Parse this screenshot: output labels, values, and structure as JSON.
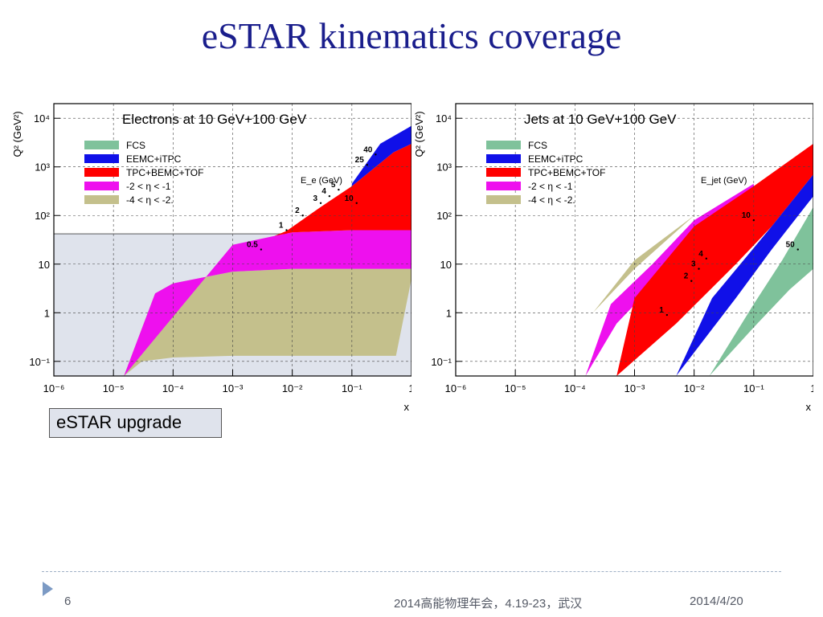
{
  "slide": {
    "title": "eSTAR kinematics coverage",
    "estar_label": "eSTAR upgrade",
    "page_number": "6",
    "footer_event": "2014高能物理年会，4.19-23，武汉",
    "footer_date": "2014/4/20"
  },
  "colors": {
    "title": "#1a1e8c",
    "FCS": "#7fc29b",
    "EEMC+iTPC": "#1010e8",
    "TPC+BEMC+TOF": "#ff0000",
    "-2 < η < -1": "#ee10ee",
    "-4 < η < -2.": "#c4c08c",
    "estar_region": "#dfe3ec"
  },
  "chart_data": [
    {
      "type": "area",
      "title": "Electrons at 10 GeV+100 GeV",
      "xlabel": "x",
      "ylabel": "Q² (GeV²)",
      "xscale": "log",
      "yscale": "log",
      "xlim": [
        1e-06,
        1
      ],
      "ylim": [
        0.05,
        20000
      ],
      "x_ticks": [
        "10⁻⁶",
        "10⁻⁵",
        "10⁻⁴",
        "10⁻³",
        "10⁻²",
        "10⁻¹",
        "1"
      ],
      "y_ticks": [
        "10⁻¹",
        "1",
        "10",
        "10²",
        "10³",
        "10⁴"
      ],
      "grid": true,
      "legend_position": "top-left",
      "legend": [
        "FCS",
        "EEMC+iTPC",
        "TPC+BEMC+TOF",
        "-2 < η < -1",
        "-4 < η < -2."
      ],
      "curve_label_title": "E_e (GeV)",
      "curve_labels": [
        "0.5",
        "1",
        "2",
        "3",
        "4",
        "5",
        "10",
        "25",
        "40"
      ],
      "curve_label_x": [
        0.003,
        0.008,
        0.015,
        0.03,
        0.042,
        0.06,
        0.12,
        0.18,
        0.25
      ],
      "curve_label_q2": [
        20,
        50,
        100,
        180,
        250,
        340,
        180,
        1100,
        1800
      ],
      "shaded_region": {
        "x": [
          1e-06,
          1
        ],
        "q2": [
          0.05,
          42
        ]
      },
      "series": [
        {
          "name": "-4 < η < -2.",
          "x": [
            1.5e-05,
            3e-05,
            0.0001,
            0.001,
            0.01,
            0.1,
            0.55,
            1,
            1,
            0.1,
            0.01,
            0.001,
            0.0001,
            5e-05,
            1.5e-05
          ],
          "q2": [
            0.05,
            0.1,
            0.12,
            0.13,
            0.13,
            0.13,
            0.13,
            5,
            8,
            8,
            8,
            7,
            4,
            2.5,
            0.05
          ]
        },
        {
          "name": "-2 < η < -1",
          "x": [
            1.5e-05,
            5e-05,
            0.0001,
            0.001,
            0.01,
            0.1,
            1,
            1,
            0.1,
            0.01,
            0.005,
            0.001,
            1.5e-05
          ],
          "q2": [
            0.05,
            2.5,
            4,
            7,
            8,
            8,
            8,
            50,
            50,
            45,
            38,
            25,
            0.05
          ]
        },
        {
          "name": "TPC+BEMC+TOF",
          "x": [
            0.005,
            0.01,
            0.1,
            1,
            1,
            0.5,
            0.1,
            0.03,
            0.008,
            0.005
          ],
          "q2": [
            38,
            45,
            50,
            50,
            3000,
            2000,
            400,
            150,
            48,
            38
          ]
        },
        {
          "name": "EEMC+iTPC",
          "x": [
            0.1,
            0.5,
            1,
            1,
            0.3,
            0.1
          ],
          "q2": [
            400,
            2000,
            3000,
            7000,
            3000,
            450
          ]
        }
      ]
    },
    {
      "type": "area",
      "title": "Jets at 10 GeV+100 GeV",
      "xlabel": "x",
      "ylabel": "Q² (GeV²)",
      "xscale": "log",
      "yscale": "log",
      "xlim": [
        1e-06,
        1
      ],
      "ylim": [
        0.05,
        20000
      ],
      "x_ticks": [
        "10⁻⁶",
        "10⁻⁵",
        "10⁻⁴",
        "10⁻³",
        "10⁻²",
        "10⁻¹",
        "1"
      ],
      "y_ticks": [
        "10⁻¹",
        "1",
        "10",
        "10²",
        "10³",
        "10⁴"
      ],
      "grid": true,
      "legend_position": "top-left",
      "legend": [
        "FCS",
        "EEMC+iTPC",
        "TPC+BEMC+TOF",
        "-2 < η < -1",
        "-4 < η < -2."
      ],
      "curve_label_title": "E_jet (GeV)",
      "curve_labels": [
        "1",
        "2",
        "3",
        "4",
        "10",
        "50"
      ],
      "curve_label_x": [
        0.0035,
        0.009,
        0.012,
        0.016,
        0.1,
        0.55
      ],
      "curve_label_q2": [
        0.9,
        4.5,
        8,
        13,
        80,
        20
      ],
      "series": [
        {
          "name": "-4 < η < -2.",
          "x": [
            5e-05,
            0.0002,
            0.001,
            0.01,
            0.01,
            0.001,
            0.0002,
            5e-05
          ],
          "q2": [
            0.05,
            1,
            8,
            100,
            100,
            12,
            1,
            0.05
          ]
        },
        {
          "name": "-2 < η < -1",
          "x": [
            0.00015,
            0.0005,
            0.003,
            0.02,
            0.1,
            0.1,
            0.01,
            0.002,
            0.0004,
            0.00015
          ],
          "q2": [
            0.05,
            0.6,
            6,
            60,
            400,
            450,
            80,
            10,
            1.5,
            0.05
          ]
        },
        {
          "name": "TPC+BEMC+TOF",
          "x": [
            0.0005,
            0.005,
            0.05,
            0.2,
            1,
            1,
            0.1,
            0.01,
            0.001,
            0.0005
          ],
          "q2": [
            0.05,
            0.6,
            10,
            60,
            700,
            3000,
            400,
            60,
            2,
            0.05
          ]
        },
        {
          "name": "EEMC+iTPC",
          "x": [
            0.005,
            0.05,
            0.2,
            1,
            1,
            0.2,
            0.02,
            0.005
          ],
          "q2": [
            0.05,
            2,
            20,
            250,
            700,
            60,
            2,
            0.05
          ]
        },
        {
          "name": "FCS",
          "x": [
            0.018,
            0.1,
            0.4,
            1,
            1,
            0.3,
            0.1,
            0.018
          ],
          "q2": [
            0.05,
            0.5,
            3,
            8,
            150,
            12,
            1.5,
            0.05
          ]
        }
      ]
    }
  ]
}
